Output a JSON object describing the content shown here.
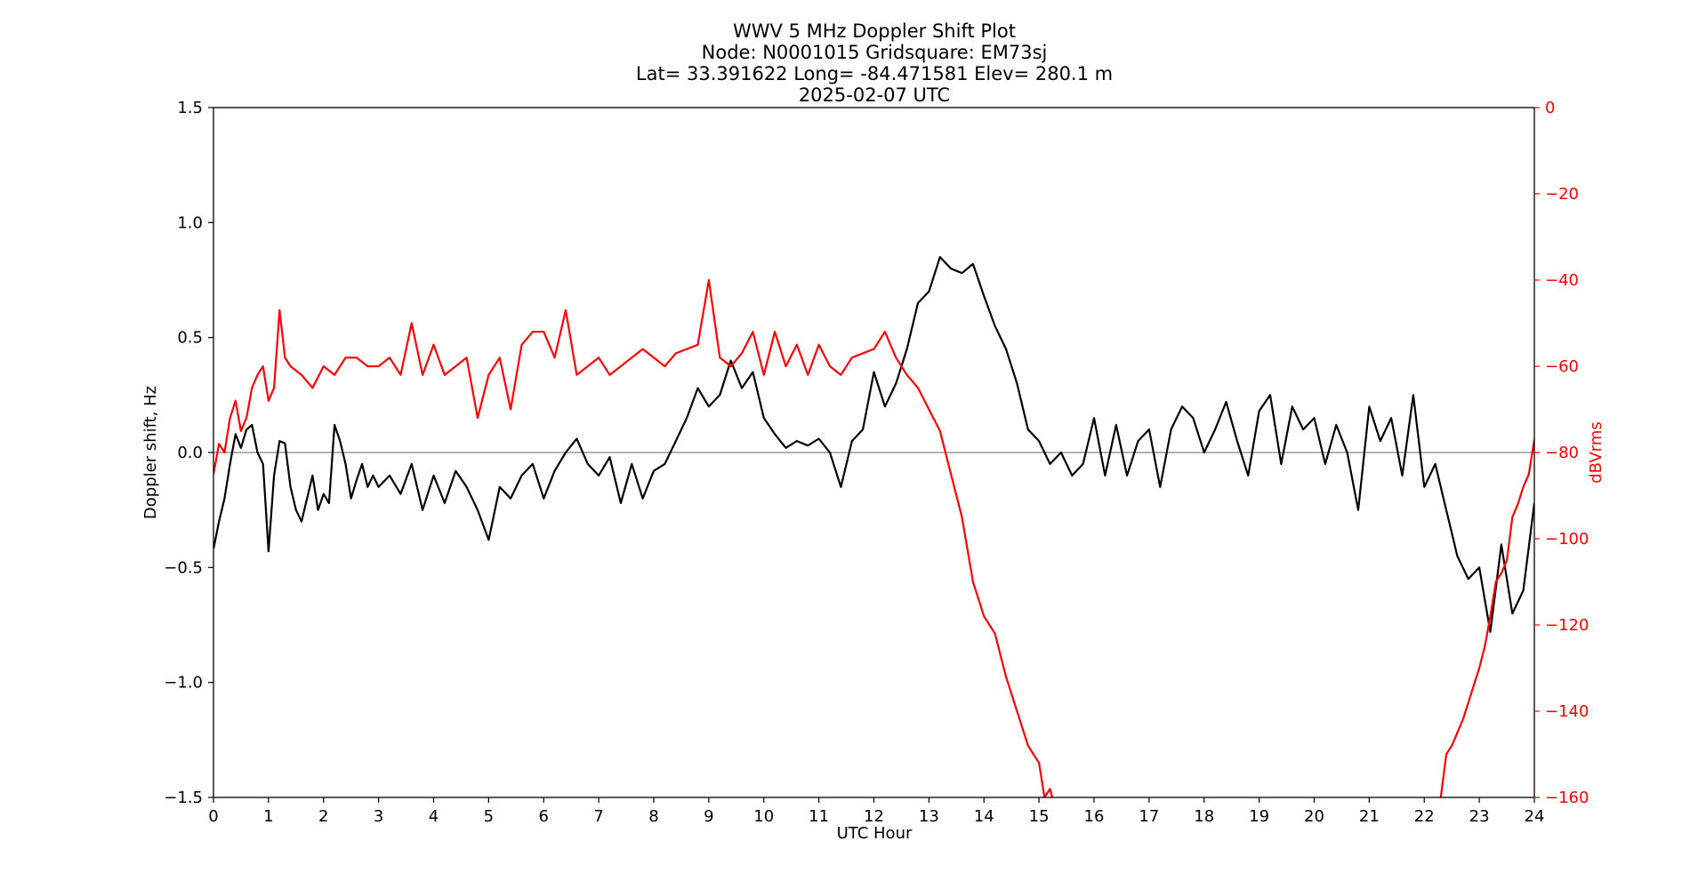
{
  "chart_data": {
    "type": "line",
    "title_lines": [
      "WWV 5 MHz Doppler Shift Plot",
      "Node:  N0001015     Gridsquare:  EM73sj",
      "Lat= 33.391622    Long= -84.471581    Elev= 280.1 m",
      "2025-02-07  UTC"
    ],
    "xlabel": "UTC Hour",
    "ylabel": "Doppler shift, Hz",
    "y2label": "dBVrms",
    "xlim": [
      0,
      24
    ],
    "ylim": [
      -1.5,
      1.5
    ],
    "y2lim": [
      -160,
      0
    ],
    "x_ticks": [
      "0",
      "1",
      "2",
      "3",
      "4",
      "5",
      "6",
      "7",
      "8",
      "9",
      "10",
      "11",
      "12",
      "13",
      "14",
      "15",
      "16",
      "17",
      "18",
      "19",
      "20",
      "21",
      "22",
      "23",
      "24"
    ],
    "y_ticks": [
      {
        "value": 1.5,
        "label": "1.5"
      },
      {
        "value": 1.0,
        "label": "1.0"
      },
      {
        "value": 0.5,
        "label": "0.5"
      },
      {
        "value": 0.0,
        "label": "0.0"
      },
      {
        "value": -0.5,
        "label": "−0.5"
      },
      {
        "value": -1.0,
        "label": "−1.0"
      },
      {
        "value": -1.5,
        "label": "−1.5"
      }
    ],
    "y2_ticks": [
      {
        "value": 0,
        "label": "0"
      },
      {
        "value": -20,
        "label": "−20"
      },
      {
        "value": -40,
        "label": "−40"
      },
      {
        "value": -60,
        "label": "−60"
      },
      {
        "value": -80,
        "label": "−80"
      },
      {
        "value": -100,
        "label": "−100"
      },
      {
        "value": -120,
        "label": "−120"
      },
      {
        "value": -140,
        "label": "−140"
      },
      {
        "value": -160,
        "label": "−160"
      }
    ],
    "zero_line": 0.0,
    "series": [
      {
        "axis": "left",
        "color": "#000000",
        "x": [
          0,
          0.1,
          0.2,
          0.3,
          0.4,
          0.5,
          0.6,
          0.7,
          0.8,
          0.9,
          1.0,
          1.1,
          1.2,
          1.3,
          1.4,
          1.5,
          1.6,
          1.7,
          1.8,
          1.9,
          2.0,
          2.1,
          2.2,
          2.3,
          2.4,
          2.5,
          2.6,
          2.7,
          2.8,
          2.9,
          3.0,
          3.2,
          3.4,
          3.6,
          3.8,
          4.0,
          4.2,
          4.4,
          4.6,
          4.8,
          5.0,
          5.2,
          5.4,
          5.6,
          5.8,
          6.0,
          6.2,
          6.4,
          6.6,
          6.8,
          7.0,
          7.2,
          7.4,
          7.6,
          7.8,
          8.0,
          8.2,
          8.4,
          8.6,
          8.8,
          9.0,
          9.2,
          9.4,
          9.6,
          9.8,
          10.0,
          10.2,
          10.4,
          10.6,
          10.8,
          11.0,
          11.2,
          11.4,
          11.6,
          11.8,
          12.0,
          12.2,
          12.4,
          12.6,
          12.8,
          13.0,
          13.2,
          13.4,
          13.6,
          13.8,
          14.0,
          14.2,
          14.4,
          14.6,
          14.8,
          15.0,
          15.2,
          15.4,
          15.6,
          15.8,
          16.0,
          16.2,
          16.4,
          16.6,
          16.8,
          17.0,
          17.2,
          17.4,
          17.6,
          17.8,
          18.0,
          18.2,
          18.4,
          18.6,
          18.8,
          19.0,
          19.2,
          19.4,
          19.6,
          19.8,
          20.0,
          20.2,
          20.4,
          20.6,
          20.8,
          21.0,
          21.2,
          21.4,
          21.6,
          21.8,
          22.0,
          22.2,
          22.4,
          22.6,
          22.8,
          23.0,
          23.2,
          23.4,
          23.6,
          23.8,
          24.0
        ],
        "y": [
          -0.42,
          -0.3,
          -0.2,
          -0.05,
          0.08,
          0.02,
          0.1,
          0.12,
          0.0,
          -0.05,
          -0.43,
          -0.1,
          0.05,
          0.04,
          -0.15,
          -0.25,
          -0.3,
          -0.2,
          -0.1,
          -0.25,
          -0.18,
          -0.22,
          0.12,
          0.05,
          -0.05,
          -0.2,
          -0.12,
          -0.05,
          -0.15,
          -0.1,
          -0.15,
          -0.1,
          -0.18,
          -0.05,
          -0.25,
          -0.1,
          -0.22,
          -0.08,
          -0.15,
          -0.25,
          -0.38,
          -0.15,
          -0.2,
          -0.1,
          -0.05,
          -0.2,
          -0.08,
          0.0,
          0.06,
          -0.05,
          -0.1,
          -0.02,
          -0.22,
          -0.05,
          -0.2,
          -0.08,
          -0.05,
          0.05,
          0.15,
          0.28,
          0.2,
          0.25,
          0.4,
          0.28,
          0.35,
          0.15,
          0.08,
          0.02,
          0.05,
          0.03,
          0.06,
          0.0,
          -0.15,
          0.05,
          0.1,
          0.35,
          0.2,
          0.3,
          0.45,
          0.65,
          0.7,
          0.85,
          0.8,
          0.78,
          0.82,
          0.68,
          0.55,
          0.45,
          0.3,
          0.1,
          0.05,
          -0.05,
          0.0,
          -0.1,
          -0.05,
          0.15,
          -0.1,
          0.12,
          -0.1,
          0.05,
          0.1,
          -0.15,
          0.1,
          0.2,
          0.15,
          0.0,
          0.1,
          0.22,
          0.05,
          -0.1,
          0.18,
          0.25,
          -0.05,
          0.2,
          0.1,
          0.15,
          -0.05,
          0.12,
          0.0,
          -0.25,
          0.2,
          0.05,
          0.15,
          -0.1,
          0.25,
          -0.15,
          -0.05,
          -0.25,
          -0.45,
          -0.55,
          -0.5,
          -0.78,
          -0.4,
          -0.7,
          -0.6,
          -0.22
        ]
      },
      {
        "axis": "right",
        "color": "#ff0000",
        "x": [
          0,
          0.1,
          0.2,
          0.3,
          0.4,
          0.5,
          0.6,
          0.7,
          0.8,
          0.9,
          1.0,
          1.1,
          1.2,
          1.3,
          1.4,
          1.6,
          1.8,
          2.0,
          2.2,
          2.4,
          2.6,
          2.8,
          3.0,
          3.2,
          3.4,
          3.6,
          3.8,
          4.0,
          4.2,
          4.4,
          4.6,
          4.8,
          5.0,
          5.2,
          5.4,
          5.6,
          5.8,
          6.0,
          6.2,
          6.4,
          6.6,
          6.8,
          7.0,
          7.2,
          7.4,
          7.6,
          7.8,
          8.0,
          8.2,
          8.4,
          8.6,
          8.8,
          9.0,
          9.2,
          9.4,
          9.6,
          9.8,
          10.0,
          10.2,
          10.4,
          10.6,
          10.8,
          11.0,
          11.2,
          11.4,
          11.6,
          11.8,
          12.0,
          12.2,
          12.4,
          12.6,
          12.8,
          13.0,
          13.2,
          13.4,
          13.6,
          13.8,
          14.0,
          14.2,
          14.4,
          14.6,
          14.8,
          15.0,
          15.1,
          15.2,
          15.3,
          15.4
        ],
        "y": [
          -85,
          -78,
          -80,
          -72,
          -68,
          -75,
          -72,
          -65,
          -62,
          -60,
          -68,
          -65,
          -47,
          -58,
          -60,
          -62,
          -65,
          -60,
          -62,
          -58,
          -58,
          -60,
          -60,
          -58,
          -62,
          -50,
          -62,
          -55,
          -62,
          -60,
          -58,
          -72,
          -62,
          -58,
          -70,
          -55,
          -52,
          -52,
          -58,
          -47,
          -62,
          -60,
          -58,
          -62,
          -60,
          -58,
          -56,
          -58,
          -60,
          -57,
          -56,
          -55,
          -40,
          -58,
          -60,
          -57,
          -52,
          -62,
          -52,
          -60,
          -55,
          -62,
          -55,
          -60,
          -62,
          -58,
          -57,
          -56,
          -52,
          -58,
          -62,
          -65,
          -70,
          -75,
          -85,
          -95,
          -110,
          -118,
          -122,
          -132,
          -140,
          -148,
          -152,
          -160,
          -158,
          -163,
          -160
        ],
        "x2": [
          22.3,
          22.4,
          22.5,
          22.6,
          22.7,
          22.8,
          22.9,
          23.0,
          23.1,
          23.2,
          23.3,
          23.4,
          23.5,
          23.6,
          23.7,
          23.8,
          23.9,
          24.0
        ],
        "y2": [
          -160,
          -150,
          -148,
          -145,
          -142,
          -138,
          -134,
          -130,
          -125,
          -118,
          -110,
          -108,
          -105,
          -95,
          -92,
          -88,
          -85,
          -77
        ]
      }
    ]
  }
}
